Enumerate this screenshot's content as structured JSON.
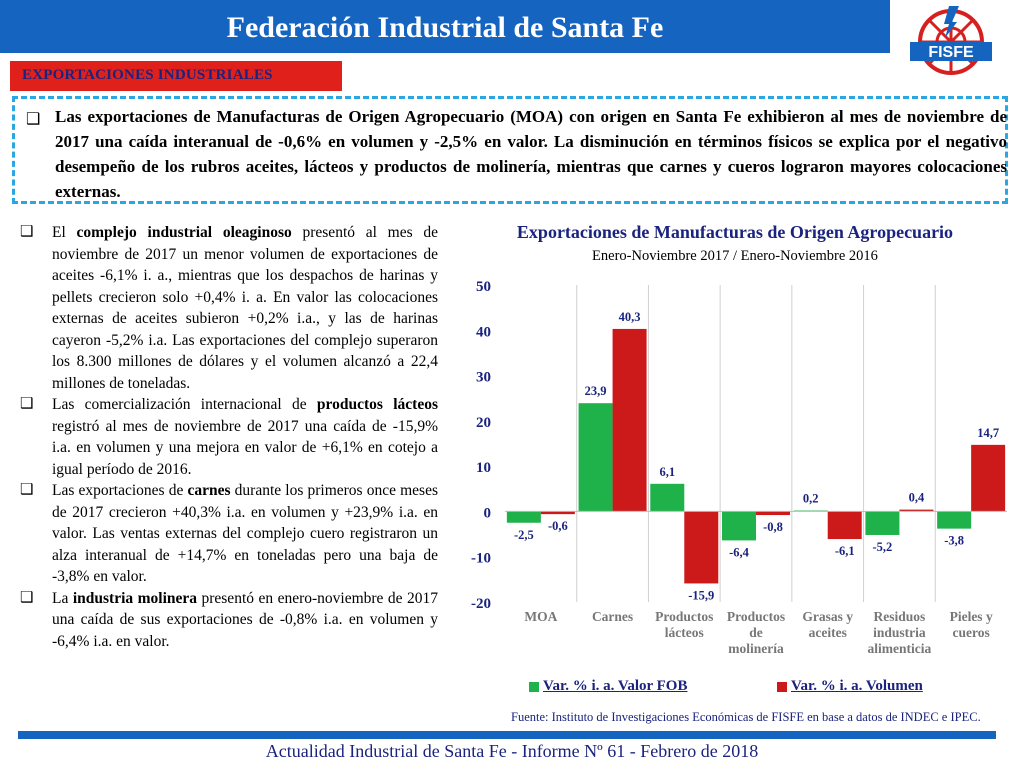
{
  "header": {
    "title": "Federación Industrial de Santa Fe",
    "logo_text": "FISFE"
  },
  "section": {
    "tag": "EXPORTACIONES INDUSTRIALES"
  },
  "summary": {
    "bullet": "❑",
    "text": "Las exportaciones de Manufacturas de Origen Agropecuario (MOA) con origen en Santa Fe exhibieron al mes de noviembre de 2017 una caída interanual de -0,6% en volumen y -2,5% en valor. La disminución en términos físicos se explica por el negativo desempeño de los rubros aceites, lácteos y productos de molinería, mientras que carnes y cueros lograron mayores colocaciones externas."
  },
  "bullets": [
    {
      "pre": "El ",
      "bold": "complejo industrial oleaginoso",
      "post": " presentó al mes de noviembre de 2017 un menor volumen de exportaciones de aceites -6,1% i. a., mientras que los despachos de harinas y pellets crecieron solo +0,4% i. a. En valor las colocaciones externas de aceites subieron +0,2% i.a., y las de harinas cayeron -5,2% i.a. Las exportaciones del complejo superaron los 8.300 millones de dólares y el volumen alcanzó a 22,4 millones de toneladas."
    },
    {
      "pre": "Las comercialización internacional de ",
      "bold": "productos lácteos",
      "post": " registró al mes de noviembre de 2017 una caída de -15,9% i.a. en volumen y una mejora en valor de +6,1% en cotejo a igual período de 2016."
    },
    {
      "pre": "Las exportaciones de ",
      "bold": "carnes",
      "post": " durante los primeros once meses de 2017 crecieron +40,3% i.a. en volumen y +23,9% i.a. en valor. Las ventas externas del complejo cuero registraron un alza interanual de +14,7% en toneladas pero una baja de -3,8% en valor."
    },
    {
      "pre": "La ",
      "bold": "industria molinera",
      "post": " presentó en enero-noviembre de 2017 una caída de sus exportaciones de -0,8% i.a. en volumen y -6,4% i.a. en valor."
    }
  ],
  "chart_data": {
    "type": "bar",
    "title": "Exportaciones de Manufacturas de Origen Agropecuario",
    "subtitle": "Enero-Noviembre 2017 / Enero-Noviembre 2016",
    "categories": [
      [
        "MOA"
      ],
      [
        "Carnes"
      ],
      [
        "Productos",
        "lácteos"
      ],
      [
        "Productos",
        "de",
        "molinería"
      ],
      [
        "Grasas y",
        "aceites"
      ],
      [
        "Residuos",
        "industria",
        "alimenticia"
      ],
      [
        "Pieles y",
        "cueros"
      ]
    ],
    "series": [
      {
        "name": "Var. % i. a. Valor FOB",
        "color": "#1fb24a",
        "values": [
          -2.5,
          23.9,
          6.1,
          -6.4,
          0.2,
          -5.2,
          -3.8
        ],
        "labels": [
          "-2,5",
          "23,9",
          "6,1",
          "-6,4",
          "0,2",
          "-5,2",
          "-3,8"
        ]
      },
      {
        "name": "Var. % i. a. Volumen",
        "color": "#cc1a1a",
        "values": [
          -0.6,
          40.3,
          -15.9,
          -0.8,
          -6.1,
          0.4,
          14.7
        ],
        "labels": [
          "-0,6",
          "40,3",
          "-15,9",
          "-0,8",
          "-6,1",
          "0,4",
          "14,7"
        ]
      }
    ],
    "yticks": [
      "50",
      "40",
      "30",
      "20",
      "10",
      "0",
      "-10",
      "-20"
    ],
    "ylim": [
      -20,
      50
    ],
    "source": "Fuente: Instituto de Investigaciones Económicas de FISFE en base a datos de INDEC e IPEC."
  },
  "footer": {
    "text": "Actualidad Industrial de Santa Fe - Informe Nº 61 - Febrero de 2018"
  }
}
